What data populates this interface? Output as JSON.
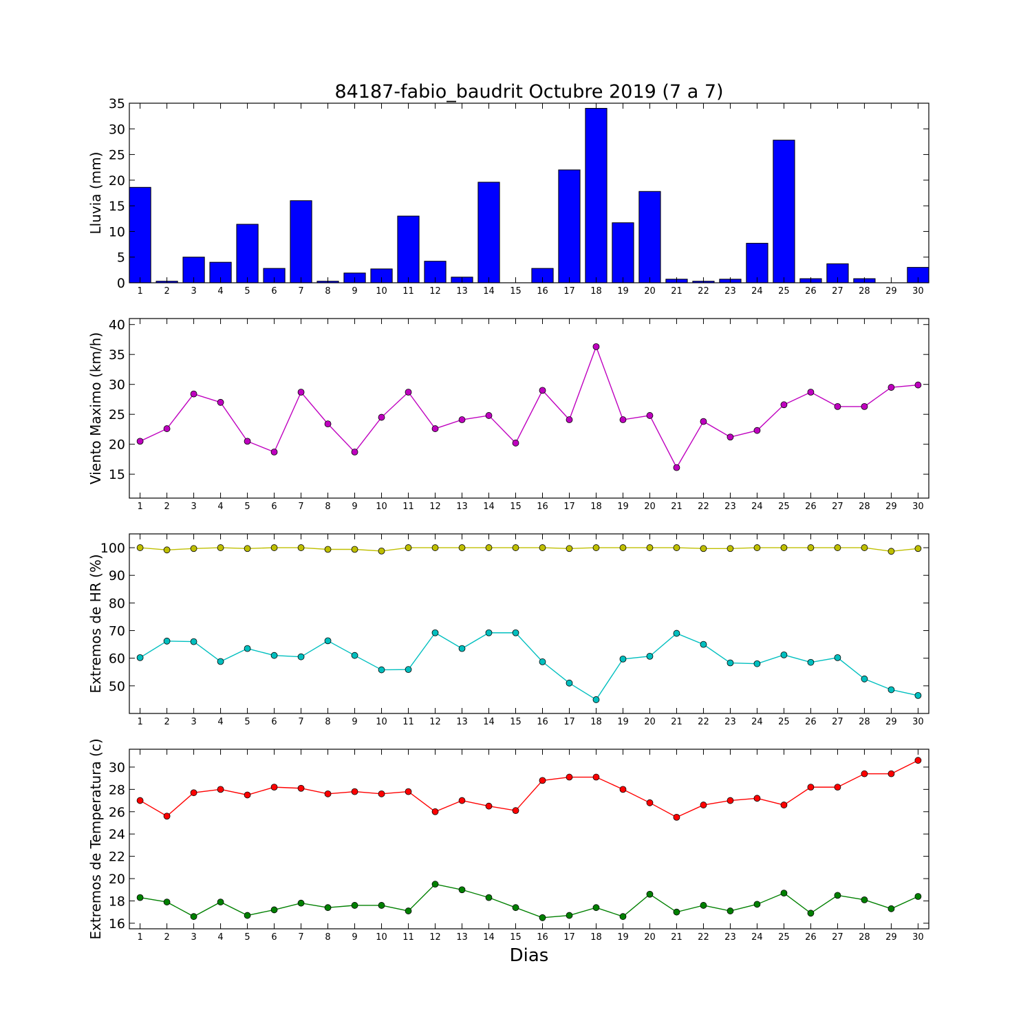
{
  "figure_title": "84187-fabio_baudrit Octubre 2019  (7 a 7)",
  "xlabel": "Dias",
  "chart_data": [
    {
      "type": "bar",
      "ylabel": "Lluvia (mm)",
      "ylim": [
        0,
        35
      ],
      "yticks": [
        0,
        5,
        10,
        15,
        20,
        25,
        30,
        35
      ],
      "categories": [
        1,
        2,
        3,
        4,
        5,
        6,
        7,
        8,
        9,
        10,
        11,
        12,
        13,
        14,
        15,
        16,
        17,
        18,
        19,
        20,
        21,
        22,
        23,
        24,
        25,
        26,
        27,
        28,
        29,
        30
      ],
      "series": [
        {
          "values": [
            18.6,
            0.3,
            5.0,
            4.0,
            11.4,
            2.8,
            16.0,
            0.3,
            1.9,
            2.7,
            13.0,
            4.2,
            1.1,
            19.6,
            0.0,
            2.8,
            22.0,
            34.0,
            11.7,
            17.8,
            0.7,
            0.3,
            0.7,
            7.7,
            27.8,
            0.8,
            3.7,
            0.8,
            0.0,
            3.0
          ],
          "color": "#0000ff"
        }
      ],
      "grid": false
    },
    {
      "type": "line",
      "ylabel": "Viento Maximo (km/h)",
      "ylim": [
        11,
        41
      ],
      "yticks": [
        15,
        20,
        25,
        30,
        35,
        40
      ],
      "categories": [
        1,
        2,
        3,
        4,
        5,
        6,
        7,
        8,
        9,
        10,
        11,
        12,
        13,
        14,
        15,
        16,
        17,
        18,
        19,
        20,
        21,
        22,
        23,
        24,
        25,
        26,
        27,
        28,
        29,
        30
      ],
      "series": [
        {
          "values": [
            20.5,
            22.6,
            28.4,
            27.0,
            20.5,
            18.7,
            28.7,
            23.4,
            18.7,
            24.5,
            28.7,
            22.6,
            24.1,
            24.8,
            20.2,
            29.0,
            24.1,
            36.3,
            24.1,
            24.8,
            16.1,
            23.8,
            21.2,
            22.3,
            26.6,
            28.7,
            26.3,
            26.3,
            29.5,
            29.9
          ],
          "color": "#bf00bf"
        }
      ],
      "grid": false
    },
    {
      "type": "line",
      "ylabel": "Extremos de HR (%)",
      "ylim": [
        40,
        105
      ],
      "yticks": [
        50,
        60,
        70,
        80,
        90,
        100
      ],
      "categories": [
        1,
        2,
        3,
        4,
        5,
        6,
        7,
        8,
        9,
        10,
        11,
        12,
        13,
        14,
        15,
        16,
        17,
        18,
        19,
        20,
        21,
        22,
        23,
        24,
        25,
        26,
        27,
        28,
        29,
        30
      ],
      "series": [
        {
          "values": [
            100,
            99.2,
            99.7,
            100,
            99.7,
            100,
            100,
            99.4,
            99.4,
            98.8,
            100,
            100,
            100,
            100,
            100,
            100,
            99.7,
            100,
            100,
            100,
            100,
            99.7,
            99.7,
            100,
            100,
            100,
            100,
            100,
            98.7,
            99.7
          ],
          "color": "#bfbf00"
        },
        {
          "values": [
            60.2,
            66.2,
            66.0,
            58.8,
            63.5,
            61.0,
            60.5,
            66.3,
            61.0,
            55.8,
            55.9,
            69.2,
            63.5,
            69.2,
            69.2,
            58.7,
            51.0,
            45.0,
            59.7,
            60.7,
            69.0,
            65.0,
            58.3,
            58.0,
            61.2,
            58.5,
            60.2,
            52.5,
            48.6,
            46.5
          ],
          "color": "#00bfbf"
        }
      ],
      "grid": false
    },
    {
      "type": "line",
      "ylabel": "Extremos de Temperatura (c)",
      "ylim": [
        15.5,
        31.6
      ],
      "yticks": [
        16,
        18,
        20,
        22,
        24,
        26,
        28,
        30
      ],
      "categories": [
        1,
        2,
        3,
        4,
        5,
        6,
        7,
        8,
        9,
        10,
        11,
        12,
        13,
        14,
        15,
        16,
        17,
        18,
        19,
        20,
        21,
        22,
        23,
        24,
        25,
        26,
        27,
        28,
        29,
        30
      ],
      "series": [
        {
          "values": [
            27.0,
            25.6,
            27.7,
            28.0,
            27.5,
            28.2,
            28.1,
            27.6,
            27.8,
            27.6,
            27.8,
            26.0,
            27.0,
            26.5,
            26.1,
            28.8,
            29.1,
            29.1,
            28.0,
            26.8,
            25.5,
            26.6,
            27.0,
            27.2,
            26.6,
            28.2,
            28.2,
            29.4,
            29.4,
            30.6
          ],
          "color": "#ff0000"
        },
        {
          "values": [
            18.3,
            17.9,
            16.6,
            17.9,
            16.7,
            17.2,
            17.8,
            17.4,
            17.6,
            17.6,
            17.1,
            19.5,
            19.0,
            18.3,
            17.4,
            16.5,
            16.7,
            17.4,
            16.6,
            18.6,
            17.0,
            17.6,
            17.1,
            17.7,
            18.7,
            16.9,
            18.5,
            18.1,
            17.3,
            18.4
          ],
          "color": "#008000"
        }
      ],
      "grid": false
    }
  ]
}
